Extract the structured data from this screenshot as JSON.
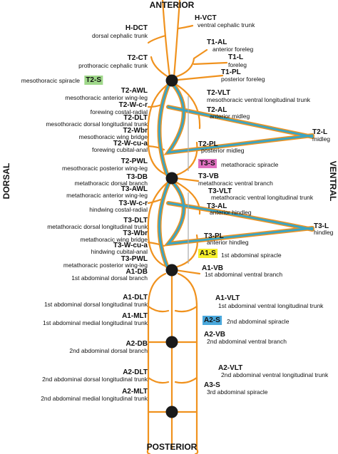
{
  "directions": {
    "top": "ANTERIOR",
    "bottom": "POSTERIOR",
    "left": "DORSAL",
    "right": "VENTRAL"
  },
  "labels": [
    {
      "code": "H-DCT",
      "description": "dorsal cephalic trunk"
    },
    {
      "code": "T2-CT",
      "description": "prothoracic cephalic trunk"
    },
    {
      "code": "T2-S",
      "description": "mesothoracic spiracle",
      "highlight": "#9fd88a"
    },
    {
      "code": "T2-AWL",
      "description": "mesothoracic anterior wing-leg"
    },
    {
      "code": "T2-W-c-r",
      "description": "forewing costal-radial"
    },
    {
      "code": "T2-DLT",
      "description": "mesothoracic dorsal longitudinal trunk"
    },
    {
      "code": "T2-Wbr",
      "description": "mesothoracic wing bridge"
    },
    {
      "code": "T2-W-cu-a",
      "description": "forewing cubital-anal"
    },
    {
      "code": "T2-PWL",
      "description": "mesothoracic posterior wing-leg"
    },
    {
      "code": "T3-DB",
      "description": "metathoracic dorsal branch"
    },
    {
      "code": "T3-AWL",
      "description": "metathoracic anterior wing-leg"
    },
    {
      "code": "T3-W-c-r",
      "description": "hindwing costal-radial"
    },
    {
      "code": "T3-DLT",
      "description": "metathoracic dorsal longitudinal trunk"
    },
    {
      "code": "T3-Wbr",
      "description": "metathoracic wing bridge"
    },
    {
      "code": "T3-W-cu-a",
      "description": "hindwing cubital-anal"
    },
    {
      "code": "T3-PWL",
      "description": "metathoracic posterior wing-leg"
    },
    {
      "code": "A1-DB",
      "description": "1st abdominal dorsal branch"
    },
    {
      "code": "A1-DLT",
      "description": "1st abdominal dorsal longitudinal trunk"
    },
    {
      "code": "A1-MLT",
      "description": "1st abdominal medial longitudinal trunk"
    },
    {
      "code": "A2-DB",
      "description": "2nd abdominal dorsal branch"
    },
    {
      "code": "A2-DLT",
      "description": "2nd abdominal dorsal longitudinal trunk"
    },
    {
      "code": "A2-MLT",
      "description": "2nd abdominal medial longitudinal trunk"
    },
    {
      "code": "H-VCT",
      "description": "ventral cephalic trunk"
    },
    {
      "code": "T1-AL",
      "description": "anterior foreleg"
    },
    {
      "code": "T1-L",
      "description": "foreleg"
    },
    {
      "code": "T1-PL",
      "description": "posterior foreleg"
    },
    {
      "code": "T2-VLT",
      "description": "mesothoracic ventral longitudinal trunk"
    },
    {
      "code": "T2-AL",
      "description": "anterior midleg"
    },
    {
      "code": "T2-L",
      "description": "midleg"
    },
    {
      "code": "T2-PL",
      "description": "posterior midleg"
    },
    {
      "code": "T3-S",
      "description": "metathoracic spiracle",
      "highlight": "#e070c0"
    },
    {
      "code": "T3-VB",
      "description": "metathoracic ventral branch"
    },
    {
      "code": "T3-VLT",
      "description": "metathoracic ventral longitudinal trunk"
    },
    {
      "code": "T3-AL",
      "description": "anterior hindleg"
    },
    {
      "code": "T3-L",
      "description": "hindleg"
    },
    {
      "code": "T3-PL",
      "description": "anterior hindleg"
    },
    {
      "code": "A1-S",
      "description": "1st abdominal spiracle",
      "highlight": "#f5ee2a"
    },
    {
      "code": "A1-VB",
      "description": "1st abdominal ventral branch"
    },
    {
      "code": "A1-VLT",
      "description": "1st abdominal ventral longitudinal trunk"
    },
    {
      "code": "A2-S",
      "description": "2nd abdominal spiracle",
      "highlight": "#4aa8dc"
    },
    {
      "code": "A2-VB",
      "description": "2nd abdominal ventral branch"
    },
    {
      "code": "A2-VLT",
      "description": "2nd abdominal ventral longitudinal trunk"
    },
    {
      "code": "A3-S",
      "description": "3rd abdominal spiracle"
    }
  ]
}
